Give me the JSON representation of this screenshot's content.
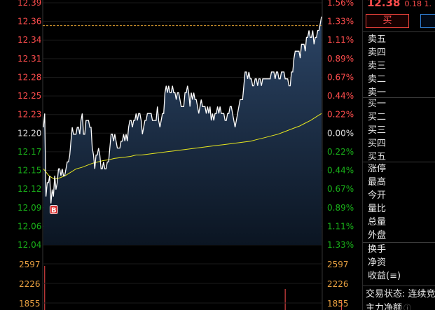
{
  "header": {
    "price": "12.38",
    "change": "0.18",
    "pct_fragment": "1."
  },
  "buttons": {
    "buy": "买",
    "sell": ""
  },
  "order_book": {
    "sell": [
      "卖五",
      "卖四",
      "卖三",
      "卖二",
      "卖一"
    ],
    "buy": [
      "买一",
      "买二",
      "买三",
      "买四",
      "买五"
    ]
  },
  "stats": {
    "group1": [
      "涨停",
      "最高",
      "今开",
      "量比",
      "总量",
      "外盘"
    ],
    "group2": [
      "换手",
      "净资",
      "收益(≡)"
    ]
  },
  "status": {
    "label": "交易状态: 连续竞"
  },
  "mainforce": {
    "label": "主力净额",
    "icon": "info-icon"
  },
  "colors": {
    "up": "#ff4d4d",
    "down": "#19b019",
    "price_line": "#ffffff",
    "avg_line": "#e6e61f",
    "area_top": "#2c4566",
    "area_bottom": "#0b1522",
    "prev_close_dash": "#e0a030",
    "volume": "#e8a040"
  },
  "chart_data": {
    "type": "line",
    "prev_close": 12.2,
    "price_ticks": [
      "12.39",
      "12.36",
      "12.34",
      "12.31",
      "12.28",
      "12.25",
      "12.23",
      "12.20",
      "12.17",
      "12.15",
      "12.12",
      "12.09",
      "12.06",
      "12.04"
    ],
    "pct_ticks": [
      "1.56%",
      "1.33%",
      "1.11%",
      "0.89%",
      "0.67%",
      "0.44%",
      "0.22%",
      "0.00%",
      "0.22%",
      "0.44%",
      "0.67%",
      "0.89%",
      "1.11%",
      "1.33%"
    ],
    "ylim": [
      12.04,
      12.39
    ],
    "volume_ticks": [
      "2597",
      "2226",
      "1855"
    ],
    "reference_line": 12.357,
    "marker": {
      "label": "B",
      "x": 8,
      "y": 12.091
    },
    "series": [
      {
        "key": "price",
        "values": [
          12.21,
          12.23,
          12.11,
          12.13,
          12.13,
          12.14,
          12.1,
          12.12,
          12.11,
          12.14,
          12.12,
          12.13,
          12.15,
          12.15,
          12.14,
          12.15,
          12.14,
          12.14,
          12.15,
          12.16,
          12.16,
          12.17,
          12.19,
          12.21,
          12.2,
          12.2,
          12.2,
          12.21,
          12.21,
          12.2,
          12.22,
          12.23,
          12.2,
          12.2,
          12.22,
          12.22,
          12.22,
          12.21,
          12.21,
          12.18,
          12.17,
          12.15,
          12.17,
          12.17,
          12.18,
          12.17,
          12.15,
          12.15,
          12.16,
          12.15,
          12.15,
          12.16,
          12.16,
          12.18,
          12.2,
          12.2,
          12.19,
          12.2,
          12.19,
          12.18,
          12.18,
          12.18,
          12.19,
          12.19,
          12.2,
          12.19,
          12.2,
          12.19,
          12.21,
          12.22,
          12.22,
          12.21,
          12.22,
          12.22,
          12.23,
          12.22,
          12.23,
          12.23,
          12.22,
          12.2,
          12.21,
          12.22,
          12.22,
          12.23,
          12.23,
          12.23,
          12.23,
          12.22,
          12.22,
          12.22,
          12.22,
          12.24,
          12.22,
          12.21,
          12.22,
          12.23,
          12.23,
          12.26,
          12.27,
          12.26,
          12.27,
          12.26,
          12.26,
          12.27,
          12.26,
          12.26,
          12.25,
          12.26,
          12.26,
          12.25,
          12.24,
          12.24,
          12.24,
          12.26,
          12.26,
          12.27,
          12.26,
          12.24,
          12.26,
          12.25,
          12.26,
          12.25,
          12.25,
          12.24,
          12.23,
          12.24,
          12.25,
          12.24,
          12.24,
          12.24,
          12.23,
          12.24,
          12.23,
          12.24,
          12.22,
          12.23,
          12.22,
          12.23,
          12.23,
          12.24,
          12.23,
          12.24,
          12.23,
          12.23,
          12.23,
          12.22,
          12.22,
          12.23,
          12.23,
          12.24,
          12.24,
          12.23,
          12.22,
          12.21,
          12.22,
          12.23,
          12.24,
          12.25,
          12.25,
          12.25,
          12.27,
          12.29,
          12.29,
          12.28,
          12.29,
          12.28,
          12.28,
          12.27,
          12.27,
          12.28,
          12.28,
          12.27,
          12.28,
          12.28,
          12.27,
          12.28,
          12.28,
          12.28,
          12.28,
          12.28,
          12.28,
          12.28,
          12.29,
          12.29,
          12.29,
          12.28,
          12.29,
          12.29,
          12.28,
          12.28,
          12.29,
          12.29,
          12.29,
          12.28,
          12.28,
          12.28,
          12.27,
          12.27,
          12.29,
          12.29,
          12.31,
          12.32,
          12.32,
          12.32,
          12.32,
          12.31,
          12.33,
          12.33,
          12.33,
          12.32,
          12.34,
          12.34,
          12.35,
          12.34,
          12.34,
          12.35,
          12.33,
          12.34,
          12.34,
          12.35,
          12.35,
          12.36,
          12.37
        ]
      },
      {
        "key": "average",
        "values": [
          12.15,
          12.14,
          12.135,
          12.137,
          12.14,
          12.145,
          12.15,
          12.152,
          12.155,
          12.158,
          12.16,
          12.162,
          12.163,
          12.165,
          12.166,
          12.167,
          12.168,
          12.17,
          12.17,
          12.171,
          12.172,
          12.173,
          12.174,
          12.175,
          12.176,
          12.177,
          12.178,
          12.179,
          12.18,
          12.181,
          12.182,
          12.183,
          12.184,
          12.185,
          12.186,
          12.187,
          12.188,
          12.189,
          12.19,
          12.192,
          12.194,
          12.196,
          12.198,
          12.2,
          12.203,
          12.206,
          12.209,
          12.212,
          12.216,
          12.22,
          12.225,
          12.23
        ]
      }
    ],
    "volume": [
      {
        "x": 1,
        "value": 2600
      },
      {
        "x": 193,
        "value": 2120
      },
      {
        "x": 238,
        "value": 1900
      }
    ]
  }
}
